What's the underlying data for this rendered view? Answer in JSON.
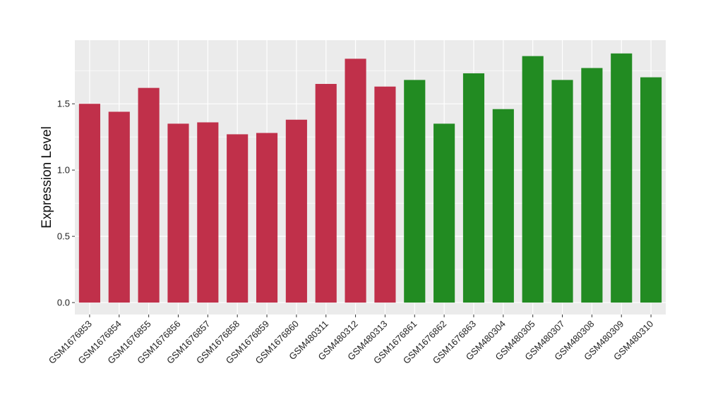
{
  "chart_data": {
    "type": "bar",
    "title": "",
    "xlabel": "",
    "ylabel": "Expression Level",
    "ylim": [
      -0.09,
      1.98
    ],
    "yticks": [
      0.0,
      0.5,
      1.0,
      1.5
    ],
    "ytick_labels": [
      "0.0",
      "0.5",
      "1.0",
      "1.5"
    ],
    "grid": true,
    "legend": "none",
    "categories": [
      "GSM1676853",
      "GSM1676854",
      "GSM1676855",
      "GSM1676856",
      "GSM1676857",
      "GSM1676858",
      "GSM1676859",
      "GSM1676860",
      "GSM480311",
      "GSM480312",
      "GSM480313",
      "GSM1676861",
      "GSM1676862",
      "GSM1676863",
      "GSM480304",
      "GSM480305",
      "GSM480307",
      "GSM480308",
      "GSM480309",
      "GSM480310"
    ],
    "values": [
      1.5,
      1.44,
      1.62,
      1.35,
      1.36,
      1.27,
      1.28,
      1.38,
      1.65,
      1.84,
      1.63,
      1.68,
      1.35,
      1.73,
      1.46,
      1.86,
      1.68,
      1.77,
      1.88,
      1.7
    ],
    "bar_colors": [
      "#C0304A",
      "#C0304A",
      "#C0304A",
      "#C0304A",
      "#C0304A",
      "#C0304A",
      "#C0304A",
      "#C0304A",
      "#C0304A",
      "#C0304A",
      "#C0304A",
      "#228B22",
      "#228B22",
      "#228B22",
      "#228B22",
      "#228B22",
      "#228B22",
      "#228B22",
      "#228B22",
      "#228B22"
    ],
    "panel_background": "#EBEBEB",
    "gridline_color": "#FFFFFF"
  }
}
